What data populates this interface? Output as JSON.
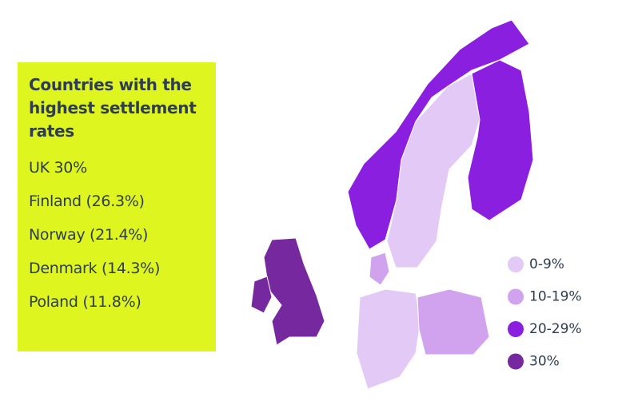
{
  "title": "Countries with the highest settlement rates",
  "items": [
    "UK 30%",
    "Finland (26.3%)",
    "Norway (21.4%)",
    "Denmark (14.3%)",
    "Poland (11.8%)"
  ],
  "legend": [
    {
      "label": "0-9%",
      "color": "#e2c9f6"
    },
    {
      "label": "10-19%",
      "color": "#d1a3ef"
    },
    {
      "label": "20-29%",
      "color": "#8b1fe0"
    },
    {
      "label": "30%",
      "color": "#76289f"
    }
  ]
}
